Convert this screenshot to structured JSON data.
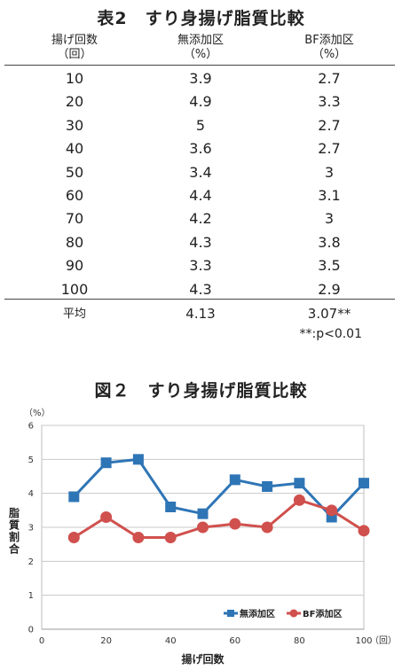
{
  "table": {
    "title": "表2　すり身揚げ脂質比較",
    "headers": [
      [
        "揚げ回数",
        "（回）"
      ],
      [
        "無添加区",
        "（%）"
      ],
      [
        "BF添加区",
        "（%）"
      ]
    ],
    "rows": [
      [
        "10",
        "3.9",
        "2.7"
      ],
      [
        "20",
        "4.9",
        "3.3"
      ],
      [
        "30",
        "5",
        "2.7"
      ],
      [
        "40",
        "3.6",
        "2.7"
      ],
      [
        "50",
        "3.4",
        "3"
      ],
      [
        "60",
        "4.4",
        "3.1"
      ],
      [
        "70",
        "4.2",
        "3"
      ],
      [
        "80",
        "4.3",
        "3.8"
      ],
      [
        "90",
        "3.3",
        "3.5"
      ],
      [
        "100",
        "4.3",
        "2.9"
      ]
    ],
    "average": [
      "平均",
      "4.13",
      "3.07**"
    ],
    "note": "**:p<0.01"
  },
  "chart_data": {
    "type": "line",
    "title": "図２　すり身揚げ脂質比較",
    "xlabel": "揚げ回数",
    "xunit": "（回）",
    "ylabel": "脂質割合",
    "yunit": "（%）",
    "x": [
      10,
      20,
      30,
      40,
      50,
      60,
      70,
      80,
      90,
      100
    ],
    "xlim": [
      0,
      100
    ],
    "ylim": [
      0,
      6
    ],
    "xticks": [
      0,
      20,
      40,
      60,
      80,
      100
    ],
    "yticks": [
      0,
      1,
      2,
      3,
      4,
      5,
      6
    ],
    "grid": "horizontal",
    "legend": "bottom-right",
    "series": [
      {
        "name": "無添加区",
        "values": [
          3.9,
          4.9,
          5.0,
          3.6,
          3.4,
          4.4,
          4.2,
          4.3,
          3.3,
          4.3
        ],
        "color": "#2E75B6",
        "marker": "square"
      },
      {
        "name": "BF添加区",
        "values": [
          2.7,
          3.3,
          2.7,
          2.7,
          3.0,
          3.1,
          3.0,
          3.8,
          3.5,
          2.9
        ],
        "color": "#D0504D",
        "marker": "circle"
      }
    ]
  }
}
